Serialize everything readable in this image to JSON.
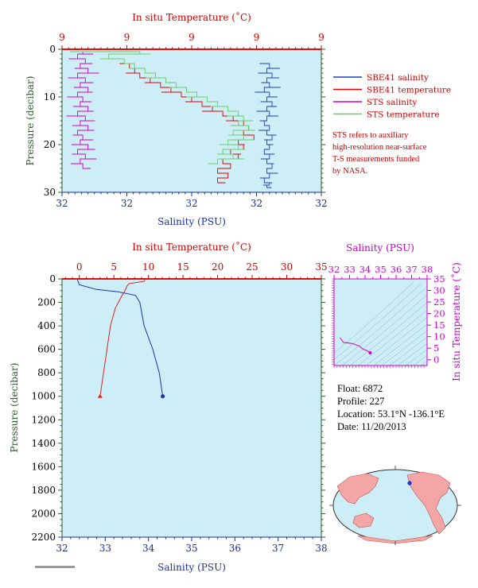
{
  "chart_data": [
    {
      "type": "line",
      "panel": "near-surface profile",
      "top_axis_label": "In situ Temperature (˚C)",
      "top_ticks": [
        "9",
        "9",
        "9",
        "9",
        "9"
      ],
      "bottom_axis_label": "Salinity (PSU)",
      "bottom_ticks": [
        "32",
        "32",
        "32",
        "32",
        "32"
      ],
      "ylabel": "Pressure (decibar)",
      "yticks": [
        "0",
        "10",
        "20",
        "30"
      ],
      "ylim": [
        30,
        0
      ],
      "grid": false,
      "legend_position": "right",
      "series": [
        {
          "name": "SBE41 salinity",
          "color": "#1f3fbf",
          "x": [
            0.78,
            0.8,
            0.79,
            0.81,
            0.79,
            0.8,
            0.78,
            0.8,
            0.79,
            0.81,
            0.79,
            0.8,
            0.79,
            0.78,
            0.8,
            0.79,
            0.81,
            0.79,
            0.8,
            0.78,
            0.8,
            0.79,
            0.81,
            0.79,
            0.8,
            0.78,
            0.8,
            0.79
          ],
          "y": [
            3,
            4,
            5,
            6,
            7,
            8,
            9,
            10,
            11,
            12,
            13,
            14,
            15,
            16,
            17,
            18,
            19,
            20,
            21,
            22,
            23,
            24,
            25,
            26,
            27,
            28,
            28.5,
            29
          ]
        },
        {
          "name": "SBE41 temperature",
          "color": "#dd0000",
          "x": [
            0.24,
            0.26,
            0.28,
            0.3,
            0.34,
            0.38,
            0.42,
            0.46,
            0.5,
            0.54,
            0.58,
            0.62,
            0.66,
            0.7,
            0.72,
            0.7,
            0.74,
            0.68,
            0.7,
            0.65,
            0.68,
            0.62,
            0.65,
            0.6,
            0.64,
            0.6
          ],
          "y": [
            3,
            4,
            5,
            6,
            7,
            8,
            9,
            10,
            11,
            12,
            13,
            14,
            15,
            16,
            17,
            18,
            19,
            20,
            21,
            22,
            23,
            24,
            25,
            26,
            27,
            28
          ]
        },
        {
          "name": "STS salinity",
          "color": "#cc00cc",
          "x": [
            0.05,
            0.08,
            0.06,
            0.09,
            0.07,
            0.1,
            0.06,
            0.09,
            0.07,
            0.1,
            0.06,
            0.08,
            0.07,
            0.1,
            0.06,
            0.09,
            0.07,
            0.1,
            0.06,
            0.08,
            0.07,
            0.1,
            0.06,
            0.09,
            0.07,
            0.08
          ],
          "y": [
            0.5,
            1,
            2,
            3,
            4,
            5,
            6,
            7,
            8,
            9,
            10,
            11,
            12,
            13,
            14,
            15,
            16,
            17,
            18,
            19,
            20,
            21,
            22,
            23,
            24,
            25
          ]
        },
        {
          "name": "STS temperature",
          "color": "#66cc66",
          "x": [
            0.05,
            0.3,
            0.18,
            0.24,
            0.28,
            0.32,
            0.36,
            0.4,
            0.44,
            0.48,
            0.52,
            0.56,
            0.6,
            0.64,
            0.68,
            0.7,
            0.68,
            0.72,
            0.66,
            0.7,
            0.64,
            0.68,
            0.62,
            0.66,
            0.6
          ],
          "y": [
            0.5,
            1,
            2,
            3,
            4,
            5,
            6,
            7,
            8,
            9,
            10,
            11,
            12,
            13,
            14,
            15,
            16,
            17,
            18,
            19,
            20,
            21,
            22,
            23,
            24
          ]
        }
      ],
      "legend": [
        {
          "label": "SBE41 salinity",
          "color": "#1f3fbf"
        },
        {
          "label": "SBE41 temperature",
          "color": "#dd0000"
        },
        {
          "label": "STS salinity",
          "color": "#cc00cc"
        },
        {
          "label": "STS temperature",
          "color": "#66cc66"
        }
      ],
      "note": [
        "STS refers to auxiliary",
        "high-resolution near-surface",
        "T-S measurements funded",
        "by NASA."
      ]
    },
    {
      "type": "line",
      "panel": "full-depth profile",
      "top_axis_label": "In situ Temperature (˚C)",
      "top_ticks": [
        0,
        5,
        10,
        15,
        20,
        25,
        30,
        35
      ],
      "xlim_temperature": [
        -2.5,
        35
      ],
      "bottom_axis_label": "Salinity (PSU)",
      "bottom_ticks": [
        32,
        33,
        34,
        35,
        36,
        37,
        38
      ],
      "xlim_salinity": [
        32,
        38
      ],
      "ylabel": "Pressure (decibar)",
      "yticks": [
        0,
        200,
        400,
        600,
        800,
        1000,
        1200,
        1400,
        1600,
        1800,
        2000,
        2200
      ],
      "ylim": [
        2200,
        0
      ],
      "grid": false,
      "series": [
        {
          "name": "Salinity",
          "color": "#1a33b3",
          "points": [
            [
              32.35,
              0
            ],
            [
              32.4,
              50
            ],
            [
              32.8,
              90
            ],
            [
              33.3,
              110
            ],
            [
              33.7,
              140
            ],
            [
              33.8,
              200
            ],
            [
              33.9,
              400
            ],
            [
              34.1,
              600
            ],
            [
              34.25,
              800
            ],
            [
              34.33,
              1000
            ]
          ]
        },
        {
          "name": "Temperature",
          "color": "#dd2222",
          "points": [
            [
              9.5,
              0
            ],
            [
              9.4,
              20
            ],
            [
              7.2,
              40
            ],
            [
              6.9,
              60
            ],
            [
              6.6,
              100
            ],
            [
              6.1,
              150
            ],
            [
              5.2,
              250
            ],
            [
              4.5,
              400
            ],
            [
              4.0,
              600
            ],
            [
              3.5,
              800
            ],
            [
              3.0,
              1000
            ]
          ]
        }
      ]
    },
    {
      "type": "line",
      "panel": "T-S diagram",
      "top_axis_label": "Salinity (PSU)",
      "top_ticks": [
        32,
        33,
        34,
        35,
        36,
        37,
        38
      ],
      "xlim": [
        32,
        38
      ],
      "right_axis_label": "In situ Temperature (˚C)",
      "right_ticks": [
        0,
        5,
        10,
        15,
        20,
        25,
        30,
        35
      ],
      "ylim": [
        -2.5,
        35
      ],
      "series": [
        {
          "name": "T-S",
          "color": "#cc00cc",
          "points": [
            [
              32.4,
              9.5
            ],
            [
              32.6,
              7.5
            ],
            [
              33.2,
              7.0
            ],
            [
              33.6,
              6.0
            ],
            [
              33.9,
              4.5
            ],
            [
              34.1,
              4.0
            ],
            [
              34.33,
              3.0
            ]
          ]
        }
      ]
    }
  ],
  "info": {
    "float": "Float:  6872",
    "profile": "Profile:  227",
    "location": "Location:  53.1°N  -136.1°E",
    "date": "Date:  11/20/2013"
  },
  "colors": {
    "plot_bg": "#cdeef7",
    "temp_axis": "#cc0000",
    "sal_axis": "#1a2ea0",
    "pressure_axis": "#2e5a2e",
    "ts_axis": "#cc00cc"
  }
}
